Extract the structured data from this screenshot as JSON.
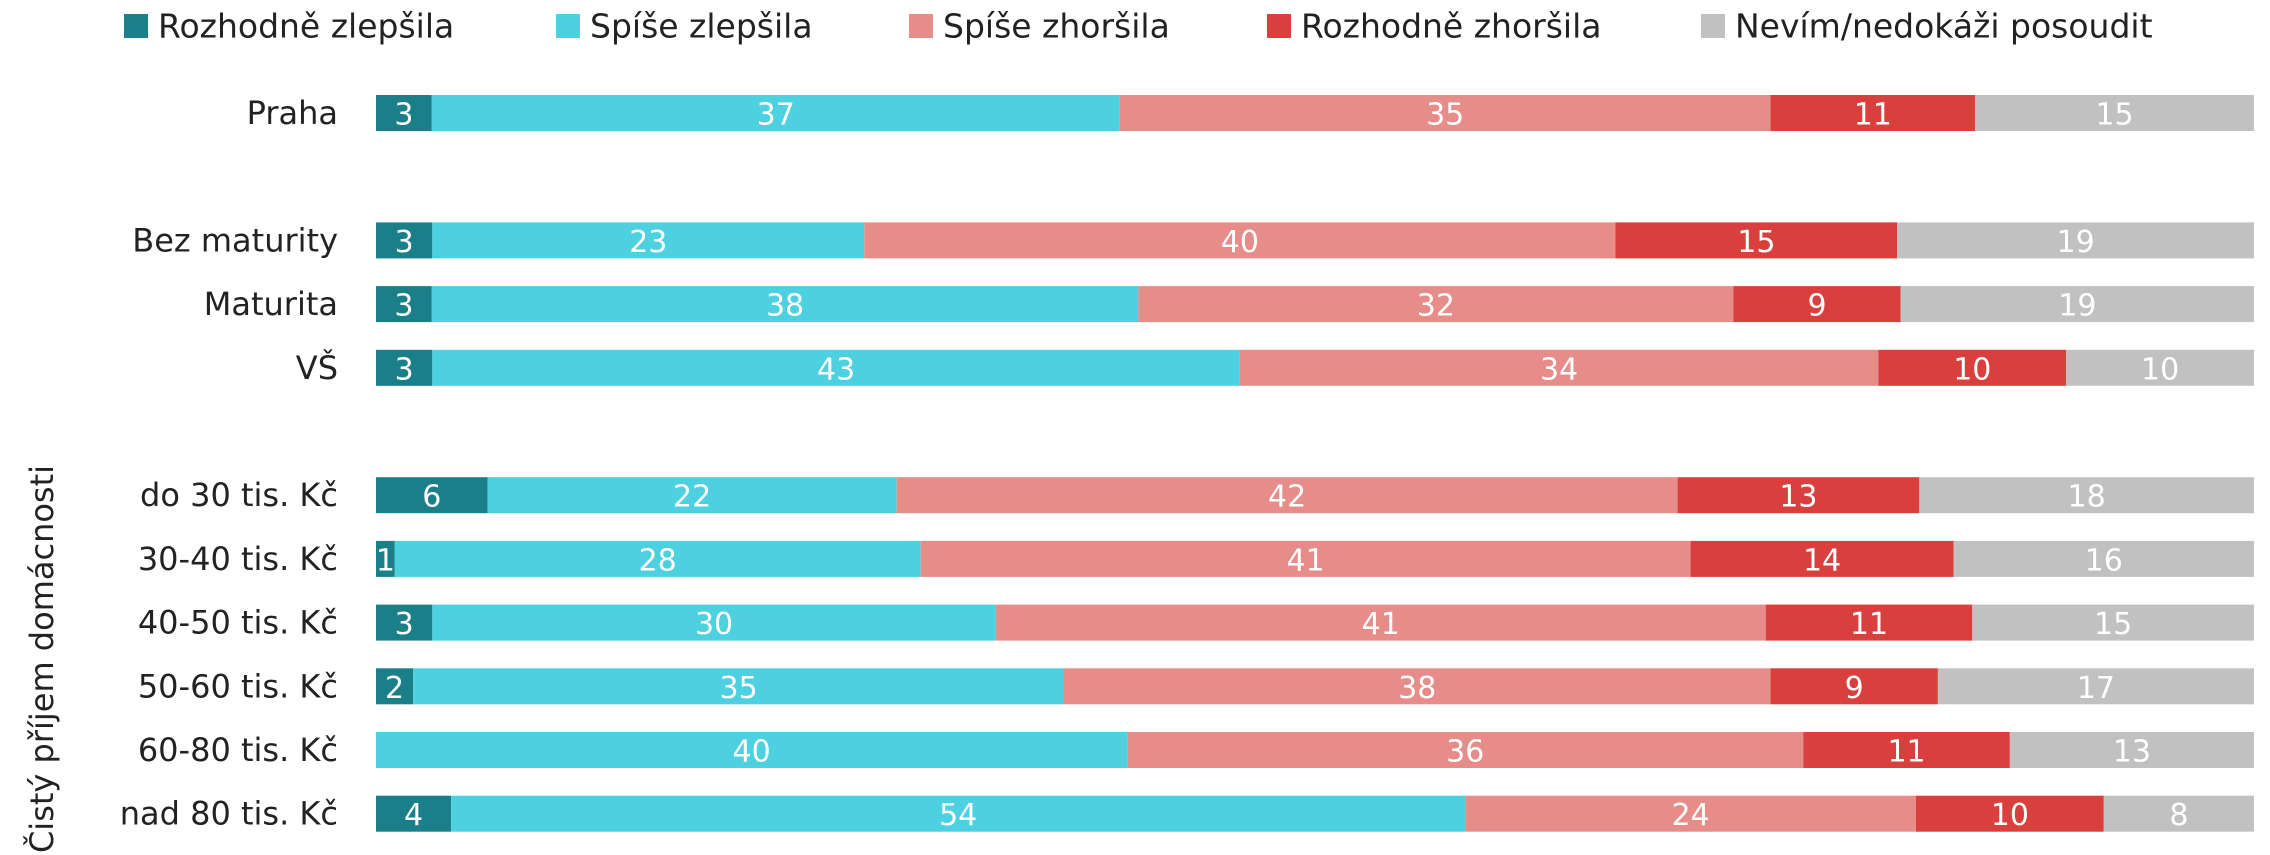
{
  "chart_data": {
    "type": "stacked-bar-horizontal",
    "y_axis_label": "Čistý příjem domácnosti",
    "categories": [
      "Praha",
      null,
      "Bez maturity",
      "Maturita",
      "VŠ",
      null,
      "do 30 tis. Kč",
      "30-40 tis. Kč",
      "40-50 tis. Kč",
      "50-60 tis. Kč",
      "60-80 tis. Kč",
      "nad 80 tis. Kč"
    ],
    "series": [
      {
        "name": "Rozhodně zlepšila",
        "color": "#1b7f89",
        "values": [
          3,
          null,
          3,
          3,
          3,
          null,
          6,
          1,
          3,
          2,
          0,
          4
        ]
      },
      {
        "name": "Spíše zlepšila",
        "color": "#4dd0e0",
        "values": [
          37,
          null,
          23,
          38,
          43,
          null,
          22,
          28,
          30,
          35,
          40,
          54
        ]
      },
      {
        "name": "Spíše zhoršila",
        "color": "#e68d89",
        "values": [
          35,
          null,
          40,
          32,
          34,
          null,
          42,
          41,
          41,
          38,
          36,
          24
        ]
      },
      {
        "name": "Rozhodně zhoršila",
        "color": "#d93f3c",
        "values": [
          11,
          null,
          15,
          9,
          10,
          null,
          13,
          14,
          11,
          9,
          11,
          10
        ]
      },
      {
        "name": "Nevím/nedokáži posoudit",
        "color": "#c1c1c1",
        "values": [
          15,
          null,
          19,
          19,
          10,
          null,
          18,
          16,
          15,
          17,
          13,
          8
        ]
      }
    ],
    "legend": "top"
  }
}
